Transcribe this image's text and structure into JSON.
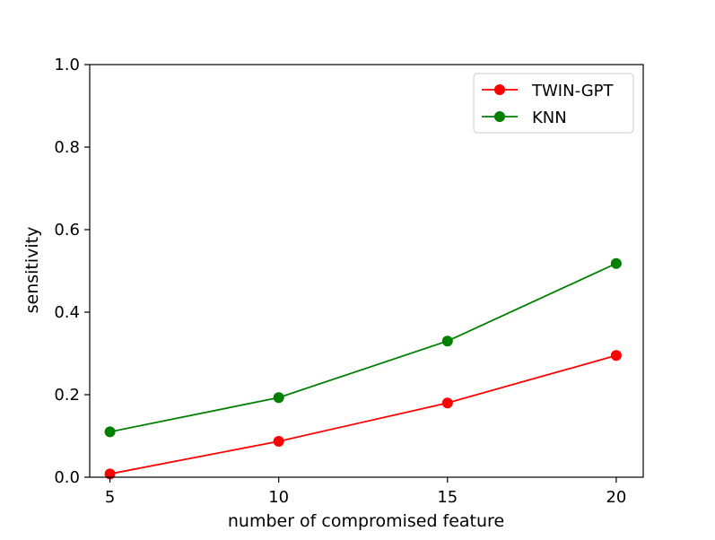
{
  "chart_data": {
    "type": "line",
    "title": "",
    "xlabel": "number of compromised feature",
    "ylabel": "sensitivity",
    "x": [
      5,
      10,
      15,
      20
    ],
    "xticks": [
      5,
      10,
      15,
      20
    ],
    "xtick_labels": [
      "5",
      "10",
      "15",
      "20"
    ],
    "xlim": [
      4.4,
      20.8
    ],
    "yticks": [
      0.0,
      0.2,
      0.4,
      0.6,
      0.8,
      1.0
    ],
    "ytick_labels": [
      "0.0",
      "0.2",
      "0.4",
      "0.6",
      "0.8",
      "1.0"
    ],
    "ylim": [
      0.0,
      1.0
    ],
    "grid": false,
    "legend_position": "top-right",
    "series": [
      {
        "name": "TWIN-GPT",
        "color": "#ff0000",
        "marker": "circle",
        "values": [
          0.008,
          0.087,
          0.18,
          0.295
        ]
      },
      {
        "name": "KNN",
        "color": "#008000",
        "marker": "circle",
        "values": [
          0.11,
          0.193,
          0.33,
          0.518
        ]
      }
    ]
  }
}
